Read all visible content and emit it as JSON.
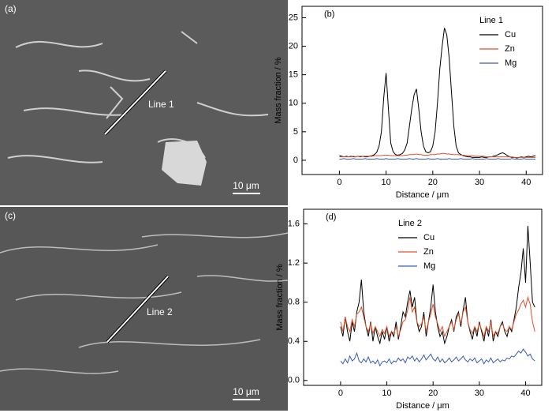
{
  "micrographs": [
    {
      "panel": "(a)",
      "line": "Line 1",
      "scale": "10 μm"
    },
    {
      "panel": "(c)",
      "line": "Line 2",
      "scale": "10 μm"
    }
  ],
  "chart_data": [
    {
      "type": "line",
      "annotation": "(b)",
      "legend_title": "Line 1",
      "legend": "upper right",
      "xlabel": "Distance / μm",
      "ylabel": "Mass fraction / %",
      "xlim": [
        -8,
        43.5
      ],
      "ylim": [
        -2.5,
        27
      ],
      "xticks": [
        0,
        10,
        20,
        30,
        40
      ],
      "yticks": [
        0,
        5,
        10,
        15,
        20,
        25
      ],
      "x": [
        0,
        0.5,
        1,
        1.5,
        2,
        2.5,
        3,
        3.5,
        4,
        4.5,
        5,
        5.5,
        6,
        6.5,
        7,
        7.5,
        8,
        8.5,
        9,
        9.5,
        10,
        10.5,
        11,
        11.5,
        12,
        12.5,
        13,
        13.5,
        14,
        14.5,
        15,
        15.5,
        16,
        16.5,
        17,
        17.5,
        18,
        18.5,
        19,
        19.5,
        20,
        20.5,
        21,
        21.5,
        22,
        22.5,
        23,
        23.5,
        24,
        24.5,
        25,
        25.5,
        26,
        26.5,
        27,
        27.5,
        28,
        28.5,
        29,
        29.5,
        30,
        30.5,
        31,
        31.5,
        32,
        32.5,
        33,
        33.5,
        34,
        34.5,
        35,
        35.5,
        36,
        36.5,
        37,
        37.5,
        38,
        38.5,
        39,
        39.5,
        40,
        40.5,
        41,
        41.5,
        42
      ],
      "series": [
        {
          "name": "Cu",
          "color": "#000000",
          "values": [
            0.8,
            0.7,
            0.6,
            0.7,
            0.6,
            0.7,
            0.6,
            0.6,
            0.7,
            0.6,
            0.7,
            0.6,
            0.6,
            0.7,
            0.8,
            1.0,
            1.4,
            2.5,
            5,
            11,
            15.3,
            9,
            3,
            1.5,
            1.0,
            0.9,
            1.0,
            1.2,
            1.8,
            3,
            6,
            9,
            11.5,
            12.5,
            9,
            5,
            2.5,
            1.5,
            1.3,
            1.5,
            2.5,
            5,
            10,
            16,
            20,
            23.2,
            22,
            18,
            12,
            6,
            2.5,
            1.3,
            1.0,
            0.8,
            0.7,
            0.6,
            0.6,
            0.5,
            0.5,
            0.5,
            0.5,
            0.6,
            0.5,
            0.5,
            0.6,
            0.6,
            0.7,
            0.8,
            1.0,
            1.2,
            1.3,
            1.1,
            0.8,
            0.6,
            0.5,
            0.5,
            0.4,
            0.5,
            0.6,
            0.5,
            0.6,
            0.7,
            0.6,
            0.7,
            0.8
          ]
        },
        {
          "name": "Zn",
          "color": "#e0502a",
          "values": [
            0.6,
            0.6,
            0.6,
            0.6,
            0.6,
            0.6,
            0.7,
            0.6,
            0.7,
            0.7,
            0.7,
            0.7,
            0.7,
            0.7,
            0.7,
            0.8,
            0.8,
            0.8,
            0.8,
            0.9,
            0.9,
            0.9,
            0.8,
            0.8,
            0.8,
            0.8,
            0.8,
            0.8,
            0.9,
            0.9,
            1.0,
            1.0,
            1.0,
            1.1,
            1.0,
            1.0,
            0.9,
            0.9,
            0.9,
            1.0,
            1.0,
            1.0,
            1.1,
            1.1,
            1.2,
            1.2,
            1.1,
            1.1,
            1.0,
            1.0,
            1.0,
            1.0,
            0.9,
            0.9,
            0.8,
            0.8,
            0.8,
            0.8,
            0.7,
            0.7,
            0.7,
            0.7,
            0.7,
            0.6,
            0.6,
            0.6,
            0.6,
            0.6,
            0.6,
            0.6,
            0.6,
            0.6,
            0.6,
            0.6,
            0.6,
            0.5,
            0.5,
            0.5,
            0.5,
            0.5,
            0.5,
            0.5,
            0.5,
            0.5,
            0.5
          ]
        },
        {
          "name": "Mg",
          "color": "#3a5bb5",
          "values": [
            0.2,
            0.2,
            0.3,
            0.2,
            0.2,
            0.2,
            0.3,
            0.2,
            0.2,
            0.2,
            0.2,
            0.3,
            0.2,
            0.2,
            0.2,
            0.2,
            0.3,
            0.2,
            0.2,
            0.2,
            0.3,
            0.2,
            0.2,
            0.2,
            0.2,
            0.3,
            0.2,
            0.2,
            0.2,
            0.2,
            0.3,
            0.2,
            0.2,
            0.3,
            0.2,
            0.2,
            0.2,
            0.2,
            0.3,
            0.2,
            0.2,
            0.2,
            0.3,
            0.2,
            0.2,
            0.2,
            0.2,
            0.3,
            0.2,
            0.2,
            0.2,
            0.2,
            0.3,
            0.2,
            0.2,
            0.2,
            0.2,
            0.3,
            0.2,
            0.2,
            0.2,
            0.2,
            0.2,
            0.3,
            0.2,
            0.2,
            0.2,
            0.2,
            0.3,
            0.2,
            0.2,
            0.2,
            0.2,
            0.2,
            0.3,
            0.2,
            0.2,
            0.2,
            0.2,
            0.3,
            0.2,
            0.2,
            0.2,
            0.2,
            0.2
          ]
        }
      ]
    },
    {
      "type": "line",
      "annotation": "(d)",
      "legend_title": "Line 2",
      "legend": "upper left",
      "xlabel": "Distance / μm",
      "ylabel": "Mass fraction / %",
      "xlim": [
        -8,
        43.5
      ],
      "ylim": [
        -0.05,
        1.75
      ],
      "xticks": [
        0,
        10,
        20,
        30,
        40
      ],
      "yticks": [
        {
          "value": 0,
          "label": "0.0"
        },
        0.4,
        0.8,
        1.2,
        1.6
      ],
      "x": [
        0,
        0.5,
        1,
        1.5,
        2,
        2.5,
        3,
        3.5,
        4,
        4.5,
        5,
        5.5,
        6,
        6.5,
        7,
        7.5,
        8,
        8.5,
        9,
        9.5,
        10,
        10.5,
        11,
        11.5,
        12,
        12.5,
        13,
        13.5,
        14,
        14.5,
        15,
        15.5,
        16,
        16.5,
        17,
        17.5,
        18,
        18.5,
        19,
        19.5,
        20,
        20.5,
        21,
        21.5,
        22,
        22.5,
        23,
        23.5,
        24,
        24.5,
        25,
        25.5,
        26,
        26.5,
        27,
        27.5,
        28,
        28.5,
        29,
        29.5,
        30,
        30.5,
        31,
        31.5,
        32,
        32.5,
        33,
        33.5,
        34,
        34.5,
        35,
        35.5,
        36,
        36.5,
        37,
        37.5,
        38,
        38.5,
        39,
        39.5,
        40,
        40.5,
        41,
        41.5,
        42
      ],
      "series": [
        {
          "name": "Cu",
          "color": "#000000",
          "values": [
            0.55,
            0.45,
            0.65,
            0.5,
            0.4,
            0.6,
            0.5,
            0.7,
            0.8,
            1.03,
            0.7,
            0.55,
            0.45,
            0.6,
            0.4,
            0.55,
            0.45,
            0.38,
            0.5,
            0.42,
            0.55,
            0.4,
            0.5,
            0.45,
            0.6,
            0.42,
            0.55,
            0.7,
            0.65,
            0.8,
            0.92,
            0.75,
            0.85,
            0.6,
            0.5,
            0.55,
            0.7,
            0.45,
            0.6,
            0.75,
            0.98,
            0.7,
            0.55,
            0.45,
            0.5,
            0.38,
            0.45,
            0.55,
            0.62,
            0.5,
            0.65,
            0.7,
            0.55,
            0.72,
            0.85,
            0.6,
            0.5,
            0.42,
            0.55,
            0.45,
            0.6,
            0.5,
            0.4,
            0.55,
            0.45,
            0.62,
            0.4,
            0.5,
            0.45,
            0.55,
            0.6,
            0.5,
            0.45,
            0.55,
            0.5,
            0.62,
            0.75,
            0.95,
            1.1,
            1.35,
            1.0,
            1.58,
            1.2,
            0.8,
            0.75
          ]
        },
        {
          "name": "Zn",
          "color": "#e0502a",
          "values": [
            0.6,
            0.5,
            0.65,
            0.55,
            0.5,
            0.62,
            0.55,
            0.68,
            0.7,
            0.75,
            0.65,
            0.55,
            0.5,
            0.58,
            0.48,
            0.55,
            0.5,
            0.45,
            0.52,
            0.48,
            0.55,
            0.45,
            0.5,
            0.48,
            0.55,
            0.45,
            0.52,
            0.6,
            0.62,
            0.72,
            0.85,
            0.7,
            0.75,
            0.6,
            0.55,
            0.58,
            0.65,
            0.5,
            0.6,
            0.68,
            0.78,
            0.65,
            0.58,
            0.5,
            0.55,
            0.45,
            0.5,
            0.55,
            0.6,
            0.52,
            0.62,
            0.68,
            0.58,
            0.7,
            0.75,
            0.6,
            0.52,
            0.48,
            0.55,
            0.5,
            0.58,
            0.52,
            0.45,
            0.55,
            0.5,
            0.6,
            0.45,
            0.5,
            0.48,
            0.55,
            0.58,
            0.52,
            0.5,
            0.55,
            0.52,
            0.6,
            0.68,
            0.72,
            0.78,
            0.82,
            0.75,
            0.85,
            0.78,
            0.6,
            0.5
          ]
        },
        {
          "name": "Mg",
          "color": "#3a5bb5",
          "values": [
            0.2,
            0.17,
            0.22,
            0.18,
            0.25,
            0.2,
            0.22,
            0.28,
            0.2,
            0.18,
            0.22,
            0.19,
            0.24,
            0.18,
            0.2,
            0.17,
            0.21,
            0.15,
            0.19,
            0.2,
            0.18,
            0.22,
            0.17,
            0.2,
            0.19,
            0.23,
            0.2,
            0.22,
            0.18,
            0.24,
            0.22,
            0.25,
            0.2,
            0.23,
            0.19,
            0.22,
            0.26,
            0.21,
            0.24,
            0.27,
            0.22,
            0.2,
            0.24,
            0.19,
            0.22,
            0.18,
            0.2,
            0.23,
            0.19,
            0.21,
            0.24,
            0.2,
            0.22,
            0.25,
            0.21,
            0.19,
            0.22,
            0.2,
            0.23,
            0.18,
            0.2,
            0.22,
            0.17,
            0.21,
            0.19,
            0.23,
            0.18,
            0.2,
            0.22,
            0.19,
            0.21,
            0.2,
            0.23,
            0.22,
            0.25,
            0.24,
            0.27,
            0.3,
            0.28,
            0.32,
            0.29,
            0.25,
            0.27,
            0.22,
            0.2
          ]
        }
      ]
    }
  ]
}
